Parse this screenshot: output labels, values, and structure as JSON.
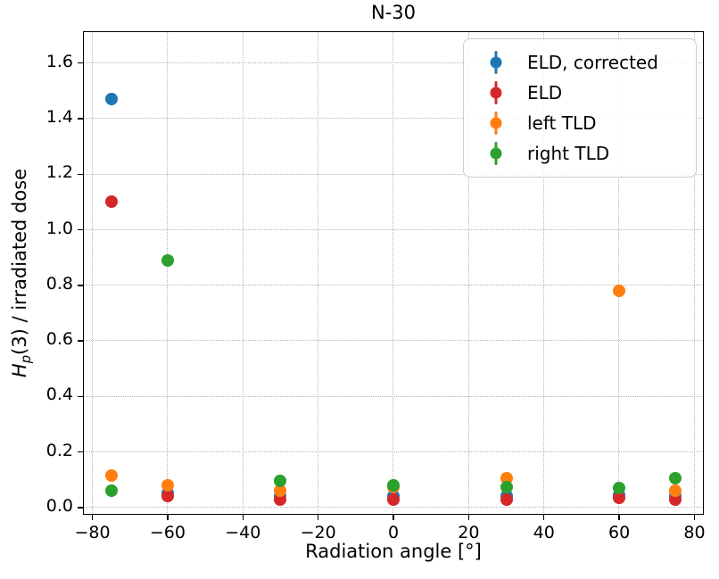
{
  "figure": {
    "title": "N-30",
    "xlabel": "Radiation angle [°]",
    "ylabel_var": "H",
    "ylabel_sub": "p",
    "ylabel_rest": "(3) / irradiated dose"
  },
  "chart_data": {
    "type": "scatter",
    "title": "N-30",
    "xlabel": "Radiation angle [°]",
    "ylabel": "H_p(3) / irradiated dose",
    "marker": "dot with small error bar",
    "grid": true,
    "legend_position": "upper right",
    "xlim": [
      -82.5,
      82.5
    ],
    "ylim": [
      -0.026,
      1.715
    ],
    "xticks": [
      -80,
      -60,
      -40,
      -20,
      0,
      20,
      40,
      60,
      80
    ],
    "yticks": [
      0.0,
      0.2,
      0.4,
      0.6,
      0.8,
      1.0,
      1.2,
      1.4,
      1.6
    ],
    "x": [
      -75,
      -60,
      -30,
      0,
      30,
      60,
      75
    ],
    "series": [
      {
        "name": "ELD, corrected",
        "color": "#1f77b4",
        "values": [
          1.47,
          0.05,
          0.04,
          0.04,
          0.04,
          0.045,
          0.04
        ]
      },
      {
        "name": "ELD",
        "color": "#d62728",
        "values": [
          1.1,
          0.04,
          0.03,
          0.03,
          0.03,
          0.035,
          0.03
        ]
      },
      {
        "name": "left TLD",
        "color": "#ff7f0e",
        "values": [
          0.115,
          0.08,
          0.06,
          0.075,
          0.105,
          0.78,
          0.06
        ]
      },
      {
        "name": "right TLD",
        "color": "#2ca02c",
        "values": [
          0.06,
          0.89,
          0.095,
          0.08,
          0.075,
          0.07,
          0.105
        ]
      }
    ]
  }
}
